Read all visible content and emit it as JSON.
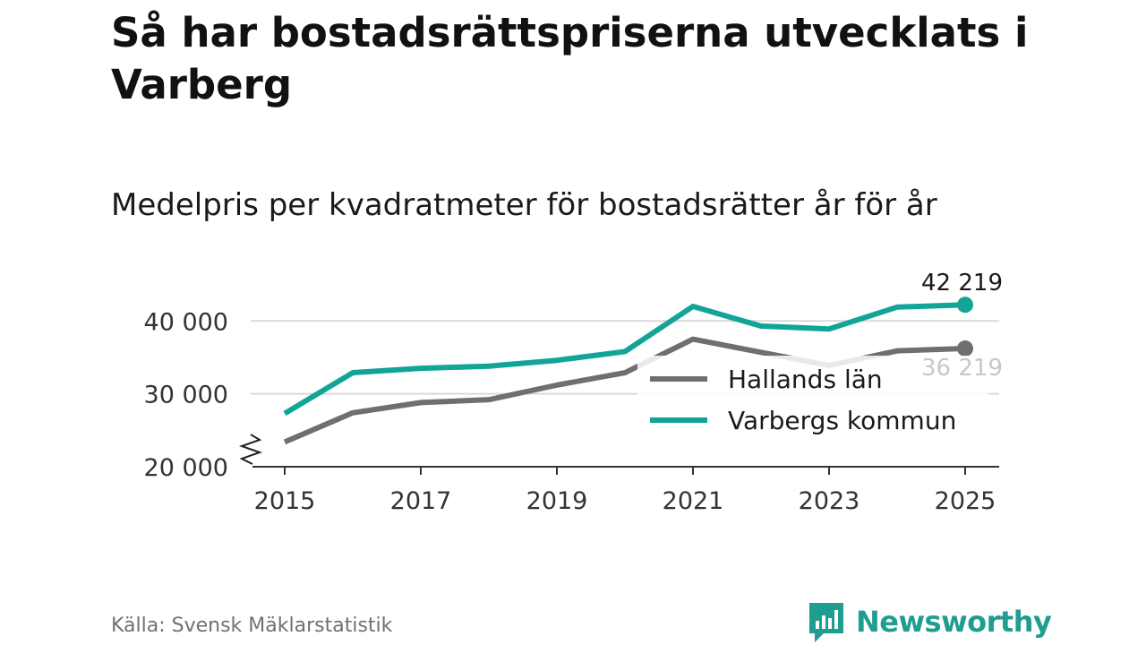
{
  "title": "Så har bostadsrättspriserna utvecklats i Varberg",
  "subtitle": "Medelpris per kvadratmeter för bostadsrätter år för år",
  "source": "Källa: Svensk Mäklarstatistik",
  "brand": "Newsworthy",
  "chart_data": {
    "type": "line",
    "title": "Så har bostadsrättspriserna utvecklats i Varberg",
    "subtitle": "Medelpris per kvadratmeter för bostadsrätter år för år",
    "xlabel": "",
    "ylabel": "",
    "x": [
      2015,
      2016,
      2017,
      2018,
      2019,
      2020,
      2021,
      2022,
      2023,
      2024,
      2025
    ],
    "x_tick_values": [
      2015,
      2017,
      2019,
      2021,
      2023,
      2025
    ],
    "x_tick_labels": [
      "2015",
      "2017",
      "2019",
      "2021",
      "2023",
      "2025"
    ],
    "ylim": [
      20000,
      42000
    ],
    "y_tick_values": [
      20000,
      30000,
      40000
    ],
    "y_tick_labels": [
      "20 000",
      "30 000",
      "40 000"
    ],
    "axis_break": true,
    "grid": true,
    "legend_position": "bottom-right",
    "series": [
      {
        "name": "Hallands län",
        "color": "#6f6e73",
        "values": [
          23400,
          27400,
          28800,
          29200,
          31200,
          32900,
          37500,
          35700,
          33900,
          35900,
          36219
        ],
        "end_label": "36 219"
      },
      {
        "name": "Varbergs kommun",
        "color": "#11a497",
        "values": [
          27300,
          32900,
          33500,
          33800,
          34600,
          35800,
          42000,
          39300,
          38900,
          41900,
          42219
        ],
        "end_label": "42 219"
      }
    ]
  },
  "colors": {
    "grid": "#d9d9d9",
    "axis": "#333333",
    "brand": "#1f9d8f"
  },
  "icons": {
    "logo": "chart-bubble-icon"
  }
}
